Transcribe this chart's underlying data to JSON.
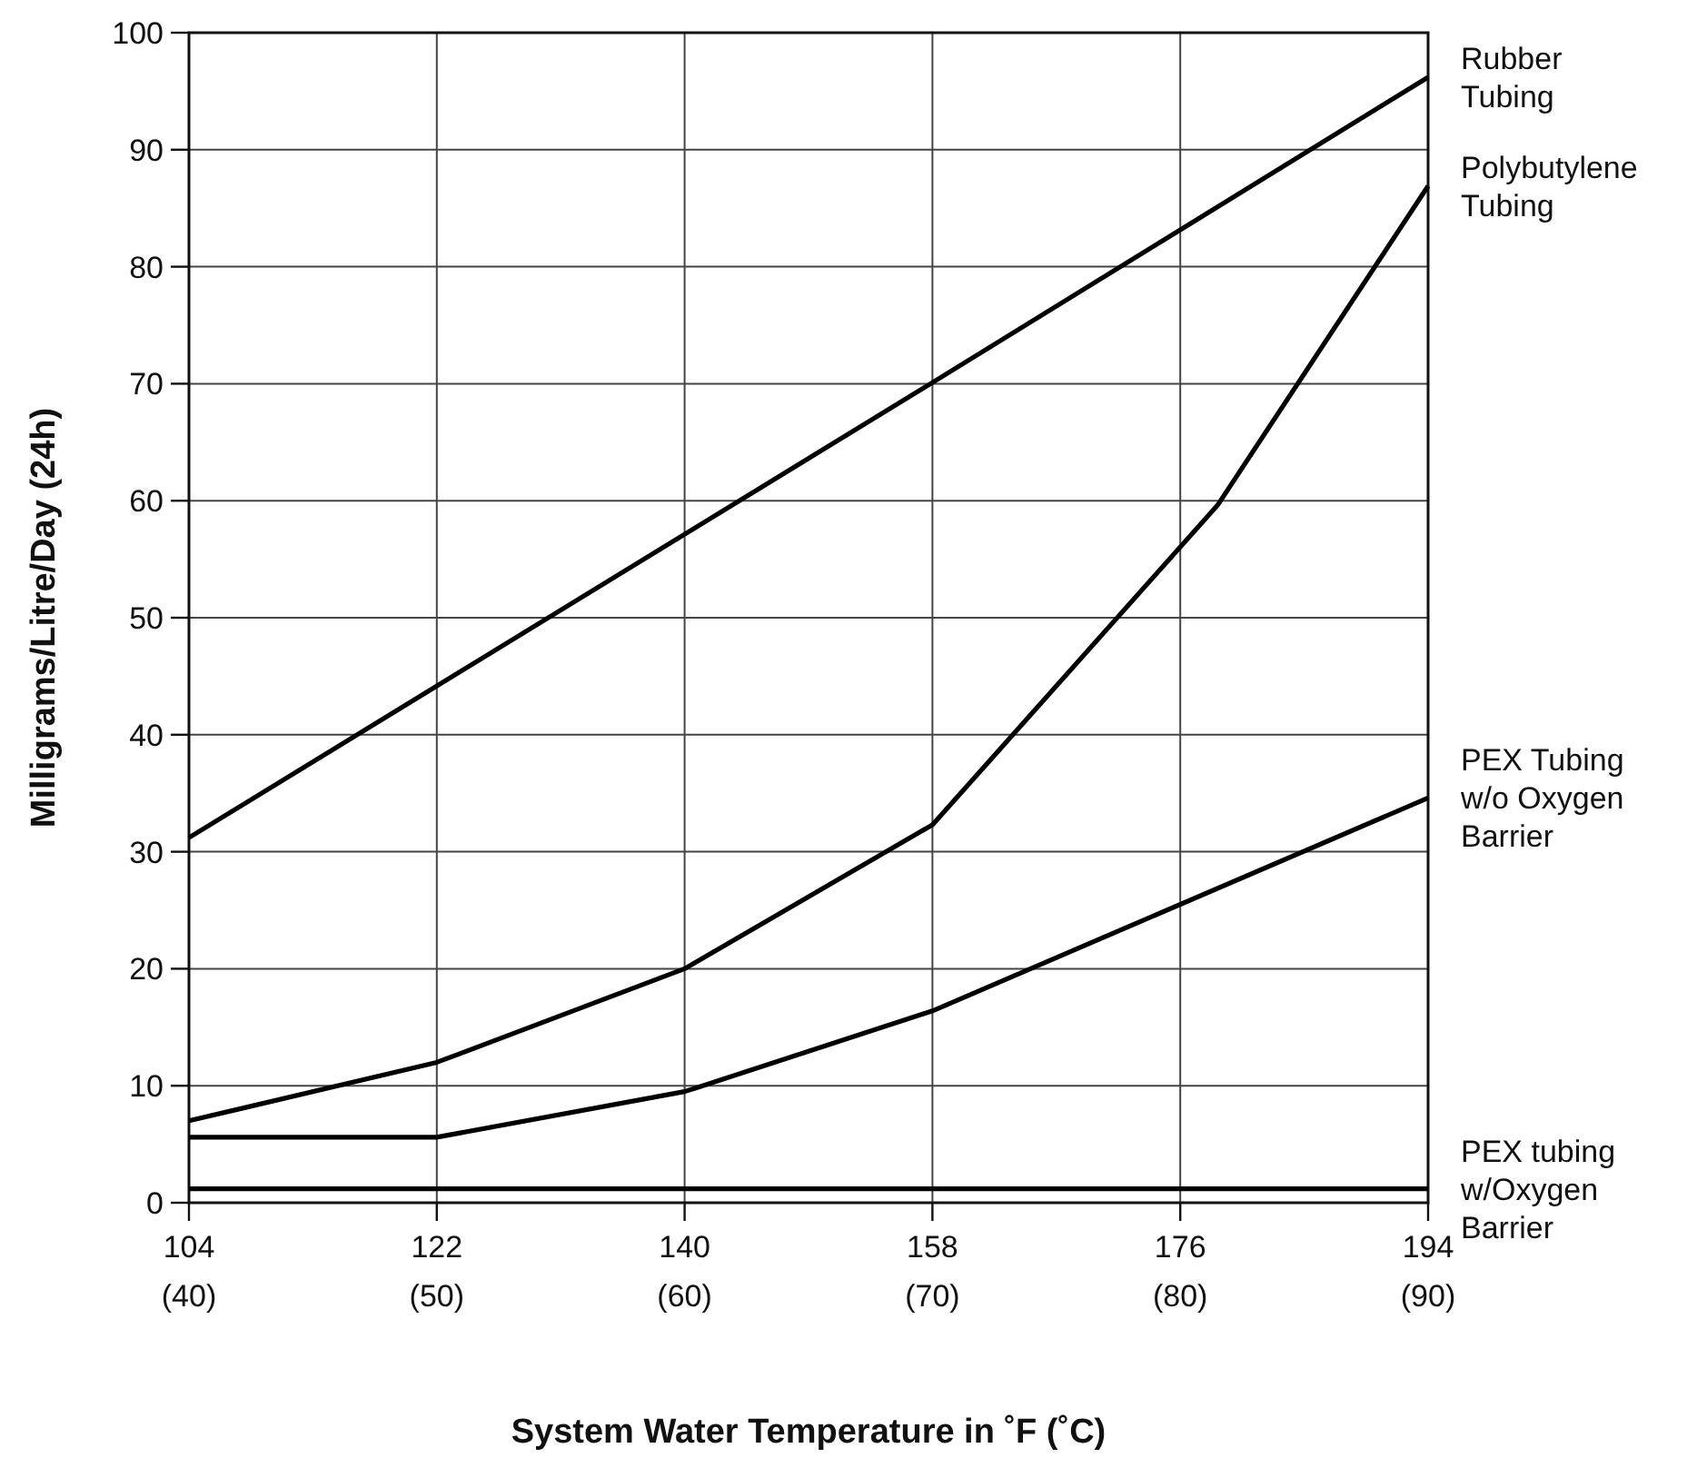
{
  "chart_data": {
    "type": "line",
    "xlabel": "System Water Temperature in ˚F (˚C)",
    "ylabel": "Milligrams/Litre/Day (24h)",
    "xlim": [
      104,
      194
    ],
    "ylim": [
      0,
      100
    ],
    "xticks": [
      104,
      122,
      140,
      158,
      176,
      194
    ],
    "x2lim": [
      40,
      90
    ],
    "x2ticks": [
      {
        "value": 40,
        "label": "(40)"
      },
      {
        "value": 50,
        "label": "(50)"
      },
      {
        "value": 60,
        "label": "(60)"
      },
      {
        "value": 70,
        "label": "(70)"
      },
      {
        "value": 80,
        "label": "(80)"
      },
      {
        "value": 90,
        "label": "(90)"
      }
    ],
    "yticks": [
      0,
      10,
      20,
      30,
      40,
      50,
      60,
      70,
      80,
      90,
      100
    ],
    "grid": true,
    "marker": "none",
    "line_style": "solid",
    "series": [
      {
        "name": "Rubber Tubing",
        "color": "#000000",
        "x": [
          104,
          158,
          194
        ],
        "values": [
          31.2,
          70.1,
          96.2
        ]
      },
      {
        "name": "Polybutylene Tubing",
        "color": "#000000",
        "x": [
          104,
          122,
          140,
          158,
          178.7,
          194
        ],
        "values": [
          7.0,
          12.0,
          20.0,
          32.3,
          59.6,
          86.9
        ]
      },
      {
        "name": "PEX Tubing w/o Oxygen Barrier",
        "color": "#000000",
        "x": [
          104,
          122,
          140,
          158,
          194
        ],
        "values": [
          5.6,
          5.6,
          9.5,
          16.4,
          34.6
        ]
      },
      {
        "name": "PEX tubing w/Oxygen Barrier",
        "color": "#000000",
        "x": [
          104,
          194
        ],
        "values": [
          1.2,
          1.2
        ]
      }
    ]
  }
}
